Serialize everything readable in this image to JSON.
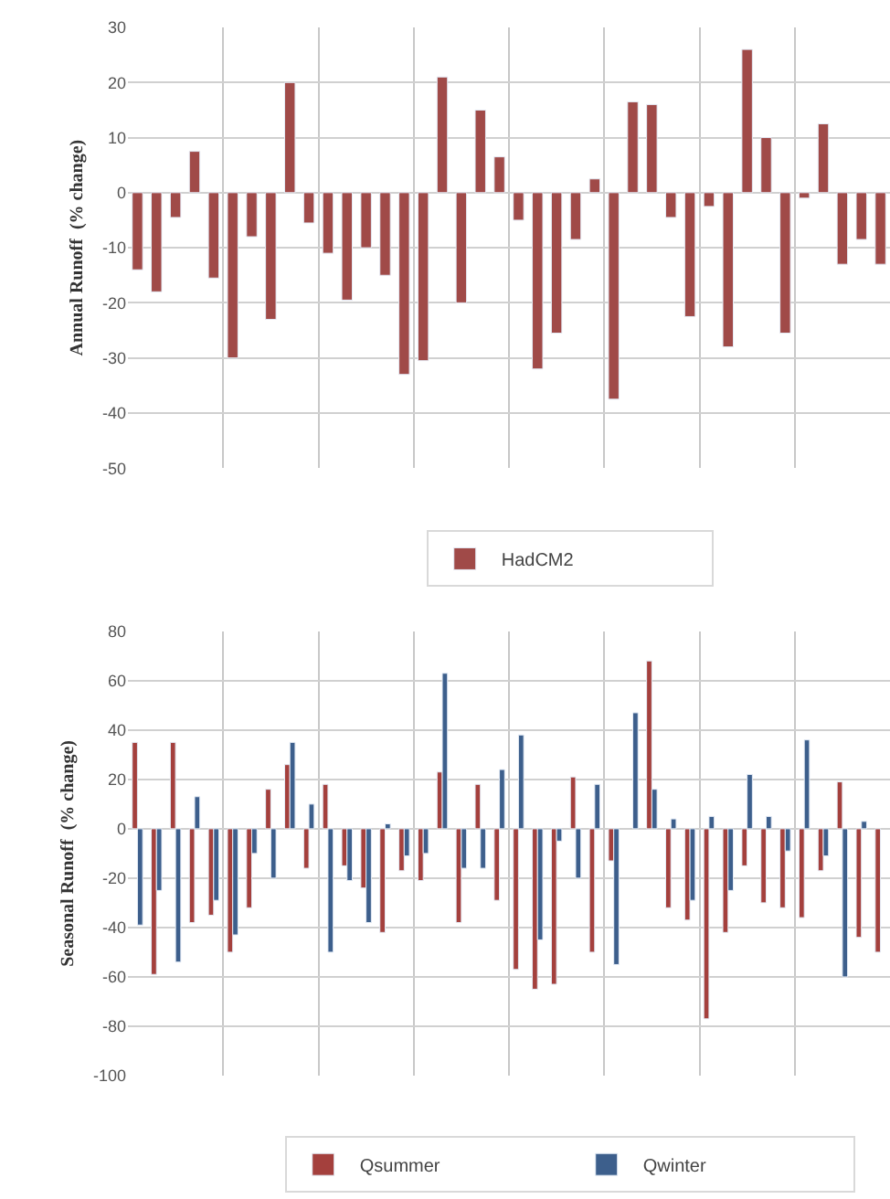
{
  "chart_data": [
    {
      "type": "bar",
      "ylabel": "Annual Runoff  (% change)",
      "categories": [
        null,
        null,
        null,
        null,
        null,
        null,
        null,
        null,
        null,
        null,
        null,
        null,
        null,
        null,
        null,
        null,
        null,
        null,
        null,
        null,
        null,
        null,
        null,
        null,
        null,
        null,
        null,
        null,
        null,
        null,
        null,
        null,
        null,
        null,
        null,
        null,
        null,
        null,
        null,
        null
      ],
      "series": [
        {
          "name": "HadCM2",
          "color": "#a04a48",
          "values": [
            -14,
            -18,
            -4.5,
            7.5,
            -15.5,
            -30,
            -8,
            -23,
            20,
            -5.5,
            -11,
            -19.5,
            -10,
            -15,
            -33,
            -30.5,
            21,
            -20,
            15,
            6.5,
            -5,
            -32,
            -25.5,
            -8.5,
            2.5,
            -37.5,
            16.5,
            16,
            -4.5,
            -22.5,
            -2.5,
            -28,
            26,
            10,
            -25.5,
            -1,
            12.5,
            -13,
            -8.5,
            -13
          ]
        }
      ],
      "ylim": [
        -50,
        30
      ],
      "yticks": [
        -50,
        -40,
        -30,
        -20,
        -10,
        0,
        10,
        20,
        30
      ],
      "grid": true,
      "legend": "bottom",
      "tick_labels": "y"
    },
    {
      "type": "bar",
      "ylabel": "Seasonal Runoff  (% change)",
      "categories": [
        null,
        null,
        null,
        null,
        null,
        null,
        null,
        null,
        null,
        null,
        null,
        null,
        null,
        null,
        null,
        null,
        null,
        null,
        null,
        null,
        null,
        null,
        null,
        null,
        null,
        null,
        null,
        null,
        null,
        null,
        null,
        null,
        null,
        null,
        null,
        null,
        null,
        null,
        null,
        null
      ],
      "series": [
        {
          "name": "Qsummer",
          "color": "#a4403d",
          "values": [
            35,
            -59,
            35,
            -38,
            -35,
            -50,
            -32,
            16,
            26,
            -16,
            18,
            -15,
            -24,
            -42,
            -17,
            -21,
            23,
            -38,
            18,
            -29,
            -57,
            -65,
            -63,
            21,
            -50,
            -13,
            null,
            68,
            -32,
            -37,
            -77,
            -42,
            -15,
            -30,
            -32,
            -36,
            -17,
            19,
            -44,
            -50
          ]
        },
        {
          "name": "Qwinter",
          "color": "#3d5f8c",
          "values": [
            -39,
            -25,
            -54,
            13,
            -29,
            -43,
            -10,
            -20,
            35,
            10,
            -50,
            -21,
            -38,
            2,
            -11,
            -10,
            63,
            -16,
            -16,
            24,
            38,
            -45,
            -5,
            -20,
            18,
            -55,
            47,
            16,
            4,
            -29,
            5,
            -25,
            22,
            5,
            -9,
            36,
            -11,
            -60,
            3,
            null
          ]
        }
      ],
      "ylim": [
        -100,
        80
      ],
      "yticks": [
        -100,
        -80,
        -60,
        -40,
        -20,
        0,
        20,
        40,
        60,
        80
      ],
      "grid": true,
      "legend": "bottom",
      "tick_labels": "y"
    }
  ]
}
